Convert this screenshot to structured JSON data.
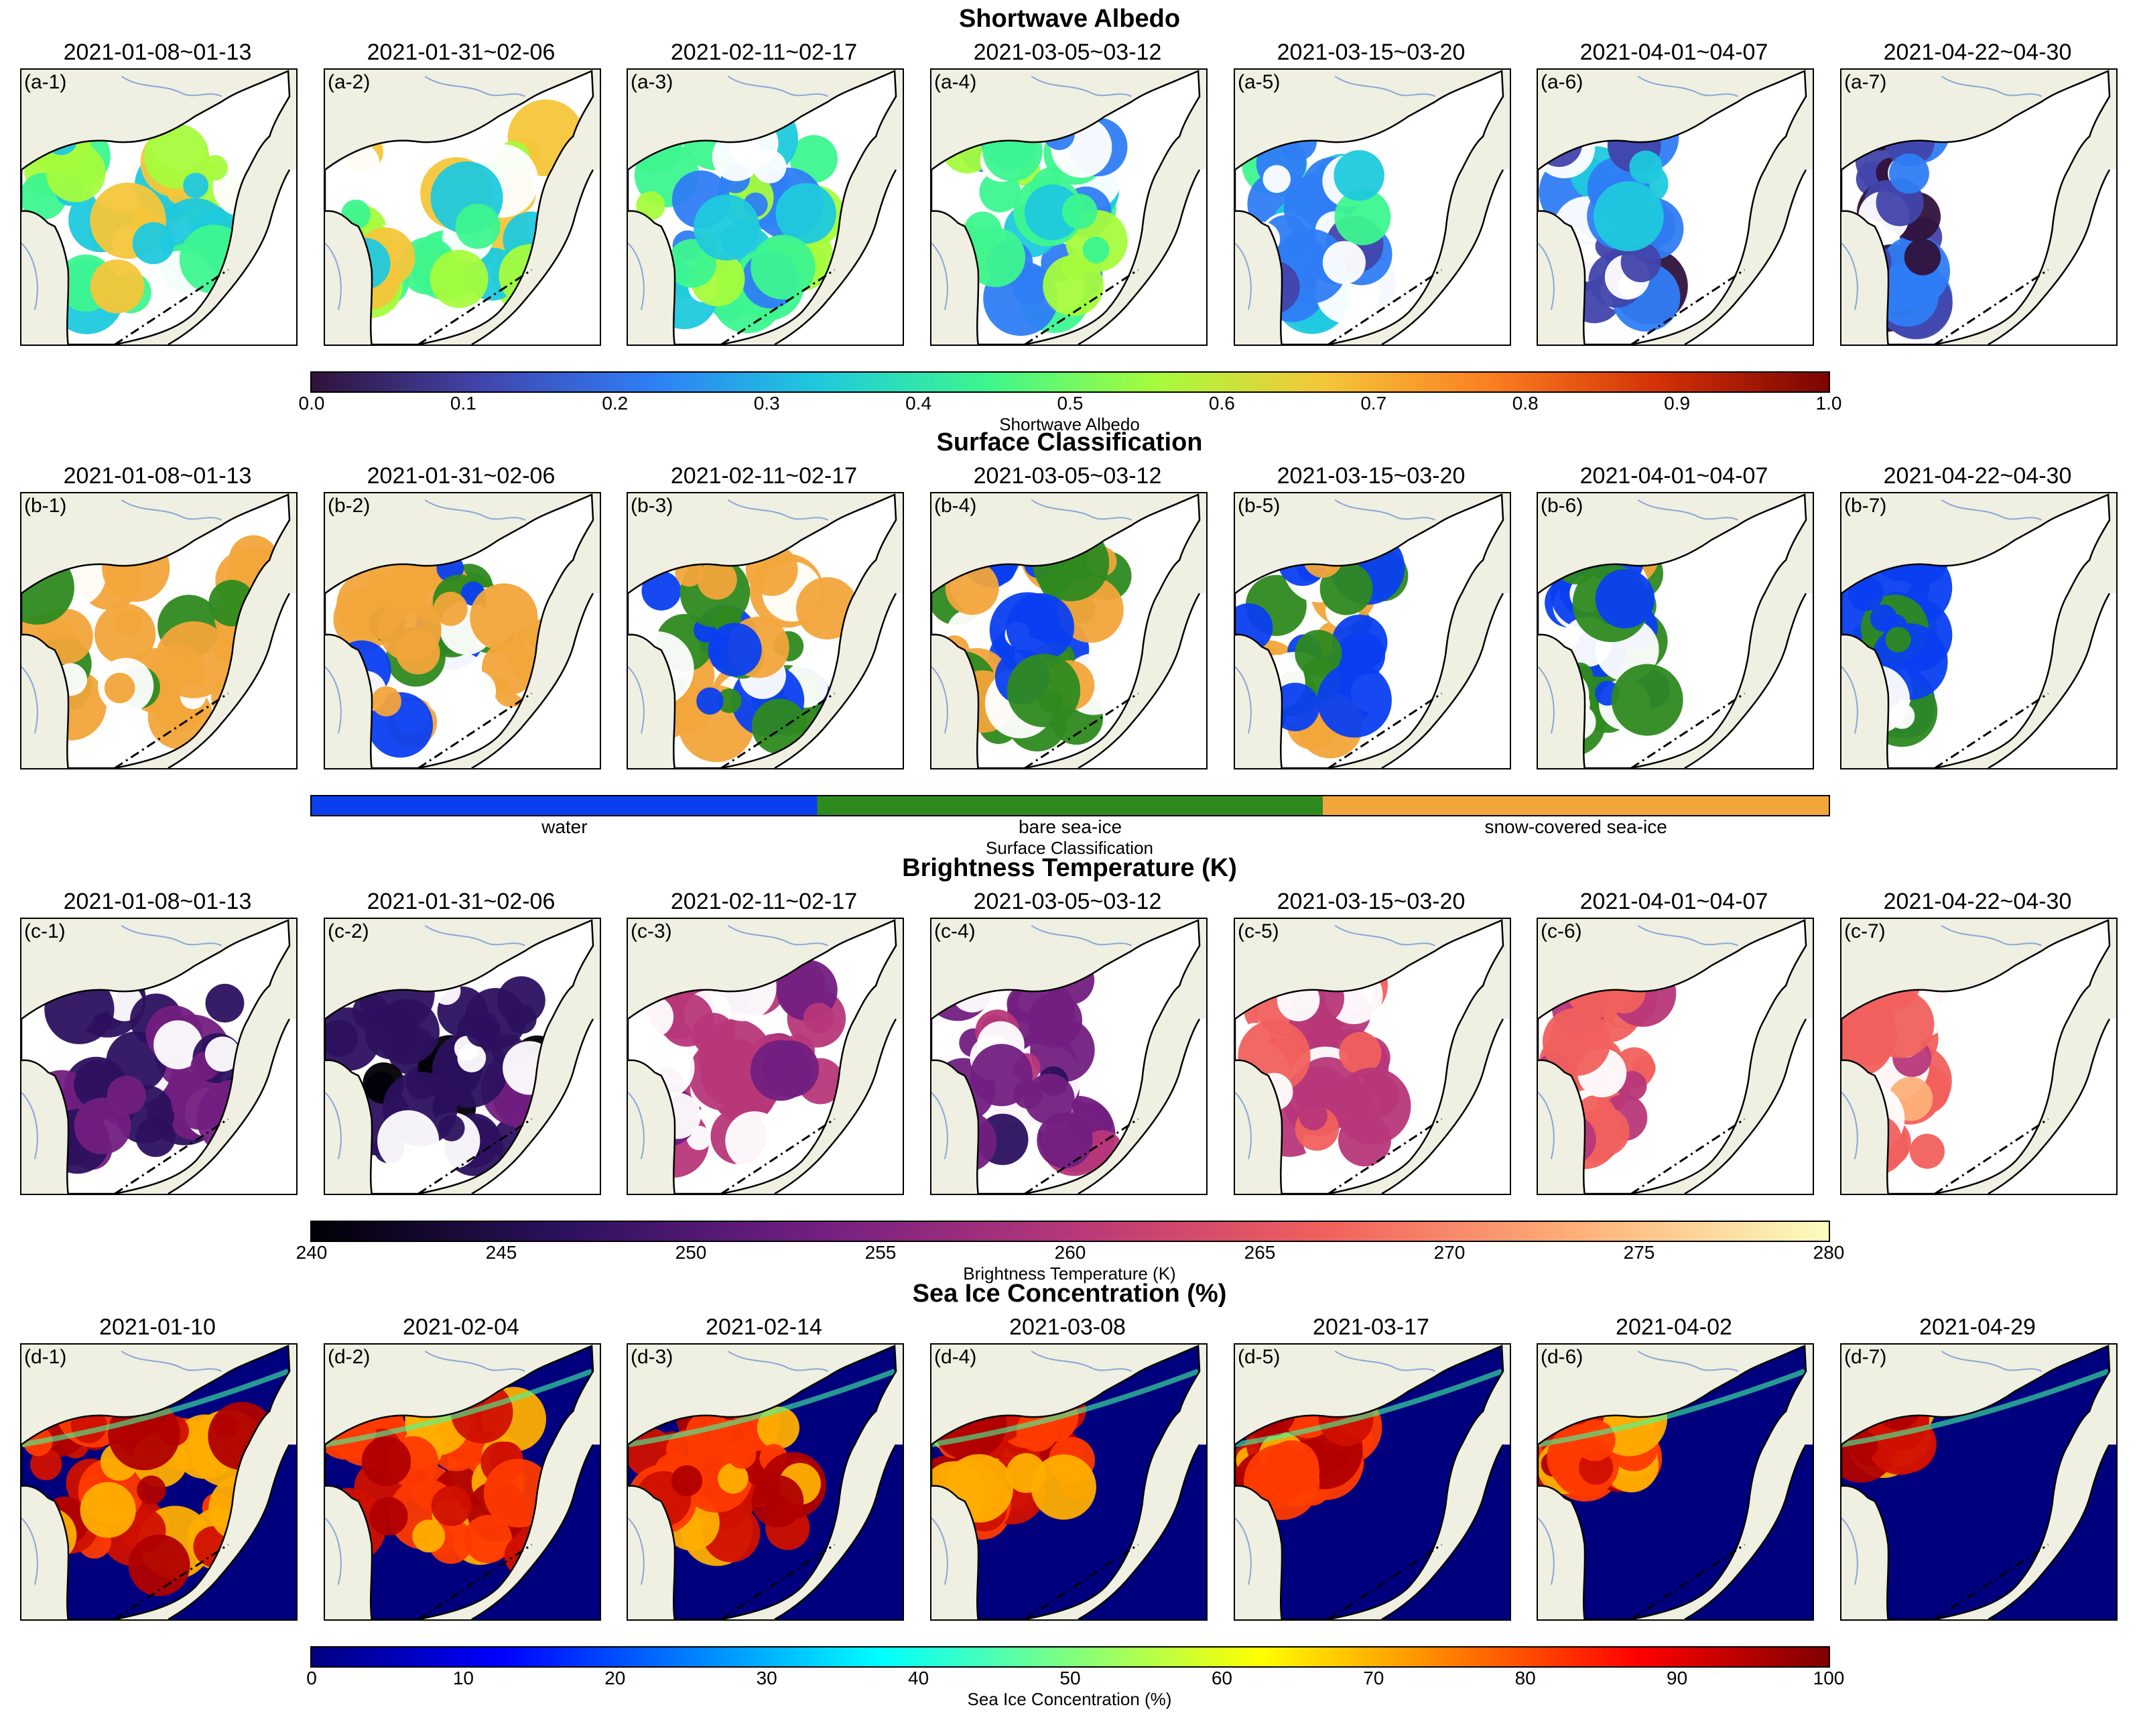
{
  "colors": {
    "water": "#0a3ff0",
    "bare": "#2e8a1f",
    "snow": "#f2a53a",
    "land": "#efefe2",
    "river": "#8aa6d6"
  },
  "shared": {
    "dates": [
      "2021-01-08~01-13",
      "2021-01-31~02-06",
      "2021-02-11~02-17",
      "2021-03-05~03-12",
      "2021-03-15~03-20",
      "2021-04-01~04-07",
      "2021-04-22~04-30"
    ]
  },
  "sections": [
    {
      "key": "a",
      "title": "Shortwave Albedo",
      "colormap": "turbo",
      "panels": [
        {
          "label": "(a-1)"
        },
        {
          "label": "(a-2)"
        },
        {
          "label": "(a-3)"
        },
        {
          "label": "(a-4)"
        },
        {
          "label": "(a-5)"
        },
        {
          "label": "(a-6)"
        },
        {
          "label": "(a-7)"
        }
      ],
      "colorbar": {
        "ticks": [
          "0.0",
          "0.1",
          "0.2",
          "0.3",
          "0.4",
          "0.5",
          "0.6",
          "0.7",
          "0.8",
          "0.9",
          "1.0"
        ],
        "label": "Shortwave Albedo"
      },
      "levels": [
        0.55,
        0.55,
        0.45,
        0.45,
        0.35,
        0.25,
        0.15
      ]
    },
    {
      "key": "b",
      "title": "Surface Classification",
      "colormap": "classes",
      "panels": [
        {
          "label": "(b-1)"
        },
        {
          "label": "(b-2)"
        },
        {
          "label": "(b-3)"
        },
        {
          "label": "(b-4)"
        },
        {
          "label": "(b-5)"
        },
        {
          "label": "(b-6)"
        },
        {
          "label": "(b-7)"
        }
      ],
      "colorbar": {
        "classes": [
          "water",
          "bare sea-ice",
          "snow-covered sea-ice"
        ],
        "label": "Surface Classification"
      }
    },
    {
      "key": "c",
      "title": "Brightness Temperature (K)",
      "colormap": "magma",
      "panels": [
        {
          "label": "(c-1)"
        },
        {
          "label": "(c-2)"
        },
        {
          "label": "(c-3)"
        },
        {
          "label": "(c-4)"
        },
        {
          "label": "(c-5)"
        },
        {
          "label": "(c-6)"
        },
        {
          "label": "(c-7)"
        }
      ],
      "colorbar": {
        "ticks": [
          "240",
          "245",
          "250",
          "255",
          "260",
          "265",
          "270",
          "275",
          "280"
        ],
        "label": "Brightness Temperature (K)"
      },
      "levels": [
        253,
        250,
        262,
        257,
        265,
        268,
        270
      ]
    },
    {
      "key": "d",
      "title": "Sea Ice Concentration (%)",
      "colormap": "jet",
      "panels": [
        {
          "label": "(d-1)",
          "date": "2021-01-10"
        },
        {
          "label": "(d-2)",
          "date": "2021-02-04"
        },
        {
          "label": "(d-3)",
          "date": "2021-02-14"
        },
        {
          "label": "(d-4)",
          "date": "2021-03-08"
        },
        {
          "label": "(d-5)",
          "date": "2021-03-17"
        },
        {
          "label": "(d-6)",
          "date": "2021-04-02"
        },
        {
          "label": "(d-7)",
          "date": "2021-04-29"
        }
      ],
      "colorbar": {
        "ticks": [
          "0",
          "10",
          "20",
          "30",
          "40",
          "50",
          "60",
          "70",
          "80",
          "90",
          "100"
        ],
        "label": "Sea Ice Concentration (%)"
      }
    }
  ]
}
